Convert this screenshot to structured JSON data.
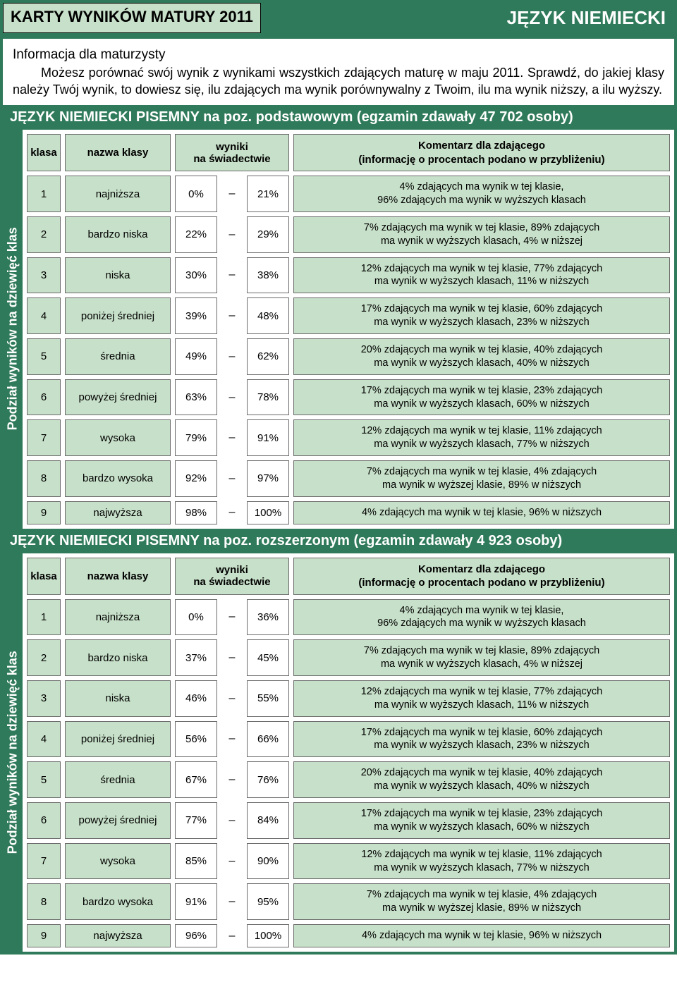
{
  "colors": {
    "header_bg": "#2f7a5a",
    "cell_bg": "#c7e0c9",
    "border": "#6a6a6a",
    "white": "#ffffff",
    "text": "#000000"
  },
  "title_bar": {
    "left": "KARTY WYNIKÓW MATURY 2011",
    "right": "JĘZYK NIEMIECKI"
  },
  "intro": {
    "heading": "Informacja dla maturzysty",
    "body": "Możesz porównać swój wynik z wynikami wszystkich zdających maturę w maju 2011. Sprawdź, do jakiej klasy należy Twój wynik, to dowiesz się, ilu zdających ma wynik porównywalny z Twoim, ilu ma wynik niższy, a ilu wyższy."
  },
  "side_label": "Podział wyników na dziewięć klas",
  "headers": {
    "klasa": "klasa",
    "nazwa": "nazwa klasy",
    "wyniki": "wyniki\nna świadectwie",
    "comment": "Komentarz dla zdającego\n(informację o procentach podano w przybliżeniu)"
  },
  "sections": [
    {
      "title": "JĘZYK NIEMIECKI PISEMNY na poz. podstawowym (egzamin zdawały 47 702 osoby)",
      "rows": [
        {
          "k": "1",
          "n": "najniższa",
          "lo": "0%",
          "hi": "21%",
          "c": "4% zdających ma wynik w tej klasie,\n96% zdających ma wynik w wyższych klasach"
        },
        {
          "k": "2",
          "n": "bardzo niska",
          "lo": "22%",
          "hi": "29%",
          "c": "7% zdających ma wynik w tej klasie, 89% zdających\nma wynik w wyższych klasach, 4% w niższej"
        },
        {
          "k": "3",
          "n": "niska",
          "lo": "30%",
          "hi": "38%",
          "c": "12% zdających ma wynik w tej klasie, 77% zdających\nma wynik w wyższych klasach, 11% w niższych"
        },
        {
          "k": "4",
          "n": "poniżej średniej",
          "lo": "39%",
          "hi": "48%",
          "c": "17% zdających ma wynik w tej klasie, 60% zdających\nma wynik w wyższych klasach, 23% w niższych"
        },
        {
          "k": "5",
          "n": "średnia",
          "lo": "49%",
          "hi": "62%",
          "c": "20% zdających ma wynik w tej klasie, 40% zdających\nma wynik w wyższych klasach, 40% w niższych"
        },
        {
          "k": "6",
          "n": "powyżej średniej",
          "lo": "63%",
          "hi": "78%",
          "c": "17% zdających ma wynik w tej klasie, 23% zdających\nma wynik w wyższych klasach, 60% w niższych"
        },
        {
          "k": "7",
          "n": "wysoka",
          "lo": "79%",
          "hi": "91%",
          "c": "12% zdających ma wynik w tej klasie, 11% zdających\nma wynik w wyższych klasach, 77% w niższych"
        },
        {
          "k": "8",
          "n": "bardzo wysoka",
          "lo": "92%",
          "hi": "97%",
          "c": "7% zdających ma wynik w tej klasie, 4% zdających\nma wynik w wyższej klasie, 89% w niższych"
        },
        {
          "k": "9",
          "n": "najwyższa",
          "lo": "98%",
          "hi": "100%",
          "c": "4% zdających ma wynik w tej klasie, 96% w niższych"
        }
      ]
    },
    {
      "title": "JĘZYK NIEMIECKI PISEMNY na poz. rozszerzonym (egzamin zdawały 4 923 osoby)",
      "rows": [
        {
          "k": "1",
          "n": "najniższa",
          "lo": "0%",
          "hi": "36%",
          "c": "4% zdających ma wynik w tej klasie,\n96% zdających ma wynik w wyższych klasach"
        },
        {
          "k": "2",
          "n": "bardzo niska",
          "lo": "37%",
          "hi": "45%",
          "c": "7% zdających ma wynik w tej klasie, 89% zdających\nma wynik w wyższych klasach, 4% w niższej"
        },
        {
          "k": "3",
          "n": "niska",
          "lo": "46%",
          "hi": "55%",
          "c": "12% zdających ma wynik w tej klasie, 77% zdających\nma wynik w wyższych klasach, 11% w niższych"
        },
        {
          "k": "4",
          "n": "poniżej średniej",
          "lo": "56%",
          "hi": "66%",
          "c": "17% zdających ma wynik w tej klasie, 60% zdających\nma wynik w wyższych klasach, 23% w niższych"
        },
        {
          "k": "5",
          "n": "średnia",
          "lo": "67%",
          "hi": "76%",
          "c": "20% zdających ma wynik w tej klasie, 40% zdających\nma wynik w wyższych klasach, 40% w niższych"
        },
        {
          "k": "6",
          "n": "powyżej średniej",
          "lo": "77%",
          "hi": "84%",
          "c": "17% zdających ma wynik w tej klasie, 23% zdających\nma wynik w wyższych klasach, 60% w niższych"
        },
        {
          "k": "7",
          "n": "wysoka",
          "lo": "85%",
          "hi": "90%",
          "c": "12% zdających ma wynik w tej klasie, 11% zdających\nma wynik w wyższych klasach, 77% w niższych"
        },
        {
          "k": "8",
          "n": "bardzo wysoka",
          "lo": "91%",
          "hi": "95%",
          "c": "7% zdających ma wynik w tej klasie, 4% zdających\nma wynik w wyższej klasie, 89% w niższych"
        },
        {
          "k": "9",
          "n": "najwyższa",
          "lo": "96%",
          "hi": "100%",
          "c": "4% zdających ma wynik w tej klasie, 96% w niższych"
        }
      ]
    }
  ]
}
